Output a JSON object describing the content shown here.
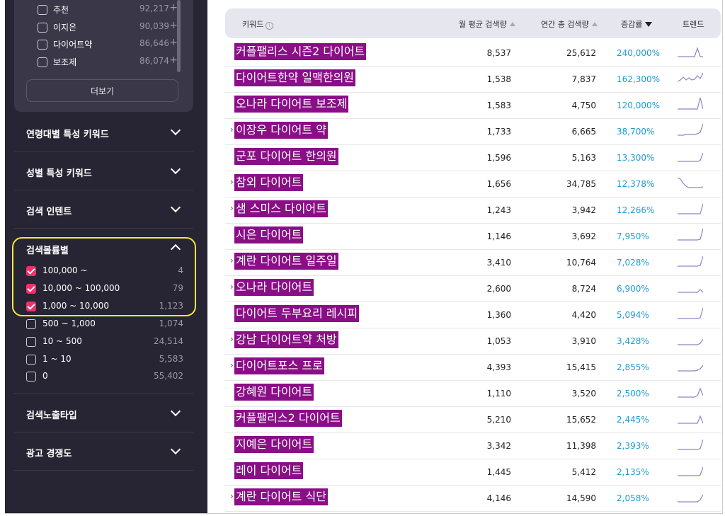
{
  "sidebar": {
    "top_filters": [
      {
        "label": "추천",
        "count": "92,217"
      },
      {
        "label": "이지은",
        "count": "90,039"
      },
      {
        "label": "다이어트약",
        "count": "86,646"
      },
      {
        "label": "보조제",
        "count": "86,074"
      }
    ],
    "plus_symbol": "+",
    "more_button": "더보기",
    "sections": {
      "age": "연령대별 특성 키워드",
      "gender": "성별 특성 키워드",
      "intent": "검색 인텐트",
      "volume": "검색볼륨별",
      "exposure": "검색노출타입",
      "competition": "광고 경쟁도"
    },
    "volume_filters": [
      {
        "label": "100,000 ~",
        "count": "4",
        "checked": true
      },
      {
        "label": "10,000 ~ 100,000",
        "count": "79",
        "checked": true
      },
      {
        "label": "1,000 ~ 10,000",
        "count": "1,123",
        "checked": true
      },
      {
        "label": "500 ~ 1,000",
        "count": "1,074",
        "checked": false
      },
      {
        "label": "10 ~ 500",
        "count": "24,514",
        "checked": false
      },
      {
        "label": "1 ~ 10",
        "count": "5,583",
        "checked": false
      },
      {
        "label": "0",
        "count": "55,402",
        "checked": false
      }
    ]
  },
  "table": {
    "headers": {
      "keyword": "키워드",
      "info_icon": "i",
      "monthly": "월 평균 검색량",
      "yearly": "연간 총 검색량",
      "growth": "증감률",
      "trend": "트렌드"
    },
    "rows": [
      {
        "kw": "커플팰리스 시즌2 다이어트",
        "caret": false,
        "monthly": "8,537",
        "yearly": "25,612",
        "growth": "240,000%",
        "trend": [
          20,
          20,
          20,
          20,
          20,
          20,
          20,
          8,
          20,
          20
        ],
        "trend_icon": "spike-icon"
      },
      {
        "kw": "다이어트한약 일맥한의원",
        "caret": false,
        "monthly": "1,538",
        "yearly": "7,837",
        "growth": "162,300%",
        "trend": [
          18,
          16,
          12,
          16,
          13,
          16,
          15,
          10,
          14,
          6
        ],
        "trend_icon": "wave-icon"
      },
      {
        "kw": "오나라 다이어트 보조제",
        "caret": false,
        "monthly": "1,583",
        "yearly": "4,750",
        "growth": "120,000%",
        "trend": [
          20,
          20,
          20,
          20,
          20,
          20,
          20,
          20,
          4,
          20
        ],
        "trend_icon": "spike-icon"
      },
      {
        "kw": "이장우 다이어트 약",
        "caret": true,
        "monthly": "1,733",
        "yearly": "6,665",
        "growth": "38,700%",
        "trend": [
          20,
          20,
          20,
          19,
          19,
          19,
          19,
          18,
          16,
          4
        ],
        "trend_icon": "rise-icon"
      },
      {
        "kw": "군포 다이어트 한의원",
        "caret": false,
        "monthly": "1,596",
        "yearly": "5,163",
        "growth": "13,300%",
        "trend": [
          20,
          20,
          20,
          20,
          20,
          20,
          20,
          20,
          19,
          8
        ],
        "trend_icon": "rise-icon"
      },
      {
        "kw": "참외 다이어트",
        "caret": true,
        "monthly": "1,656",
        "yearly": "34,785",
        "growth": "12,378%",
        "trend": [
          6,
          8,
          14,
          18,
          20,
          20,
          20,
          20,
          20,
          19
        ],
        "trend_icon": "fall-icon"
      },
      {
        "kw": "샘 스미스 다이어트",
        "caret": true,
        "monthly": "1,243",
        "yearly": "3,942",
        "growth": "12,266%",
        "trend": [
          20,
          20,
          20,
          20,
          20,
          20,
          20,
          20,
          20,
          6
        ],
        "trend_icon": "rise-icon"
      },
      {
        "kw": "시은 다이어트",
        "caret": false,
        "monthly": "1,146",
        "yearly": "3,692",
        "growth": "7,950%",
        "trend": [
          20,
          20,
          20,
          20,
          20,
          20,
          20,
          20,
          19,
          4
        ],
        "trend_icon": "rise-icon"
      },
      {
        "kw": "계란 다이어트 일주일",
        "caret": true,
        "monthly": "3,410",
        "yearly": "10,764",
        "growth": "7,028%",
        "trend": [
          20,
          20,
          20,
          20,
          20,
          20,
          20,
          20,
          19,
          6
        ],
        "trend_icon": "rise-icon"
      },
      {
        "kw": "오나라 다이어트",
        "caret": true,
        "monthly": "2,600",
        "yearly": "8,724",
        "growth": "6,900%",
        "trend": [
          20,
          20,
          20,
          20,
          20,
          20,
          20,
          20,
          16,
          20
        ],
        "trend_icon": "spike-icon"
      },
      {
        "kw": "다이어트 두부요리 레시피",
        "caret": false,
        "monthly": "1,360",
        "yearly": "4,420",
        "growth": "5,094%",
        "trend": [
          20,
          20,
          20,
          20,
          20,
          20,
          20,
          20,
          19,
          5
        ],
        "trend_icon": "rise-icon"
      },
      {
        "kw": "강남 다이어트약 처방",
        "caret": true,
        "monthly": "1,053",
        "yearly": "3,910",
        "growth": "3,428%",
        "trend": [
          20,
          20,
          20,
          20,
          20,
          20,
          20,
          20,
          18,
          12
        ],
        "trend_icon": "rise-icon"
      },
      {
        "kw": "다이어트포스 프로",
        "caret": true,
        "monthly": "4,393",
        "yearly": "15,415",
        "growth": "2,855%",
        "trend": [
          20,
          20,
          20,
          20,
          20,
          20,
          20,
          19,
          17,
          12
        ],
        "trend_icon": "rise-icon"
      },
      {
        "kw": "강혜원 다이어트",
        "caret": false,
        "monthly": "1,110",
        "yearly": "3,520",
        "growth": "2,500%",
        "trend": [
          20,
          20,
          20,
          20,
          20,
          20,
          20,
          18,
          8,
          18
        ],
        "trend_icon": "spike-icon"
      },
      {
        "kw": "커플팰리스2 다이어트",
        "caret": false,
        "monthly": "5,210",
        "yearly": "15,652",
        "growth": "2,445%",
        "trend": [
          20,
          20,
          20,
          20,
          20,
          20,
          20,
          20,
          10,
          20
        ],
        "trend_icon": "spike-icon"
      },
      {
        "kw": "지예은 다이어트",
        "caret": false,
        "monthly": "3,342",
        "yearly": "11,398",
        "growth": "2,393%",
        "trend": [
          20,
          20,
          20,
          20,
          20,
          20,
          20,
          20,
          19,
          6
        ],
        "trend_icon": "rise-icon"
      },
      {
        "kw": "레이 다이어트",
        "caret": false,
        "monthly": "1,445",
        "yearly": "5,412",
        "growth": "2,135%",
        "trend": [
          20,
          20,
          20,
          20,
          20,
          20,
          20,
          20,
          19,
          8
        ],
        "trend_icon": "rise-icon"
      },
      {
        "kw": "계란 다이어트 식단",
        "caret": true,
        "monthly": "4,146",
        "yearly": "14,590",
        "growth": "2,058%",
        "trend": [
          20,
          20,
          20,
          20,
          20,
          20,
          20,
          20,
          17,
          10
        ],
        "trend_icon": "rise-icon"
      }
    ]
  },
  "colors": {
    "sidebar_bg": "#272433",
    "checkbox_on": "#f0306a",
    "highlight_keyword": "#8a0e86",
    "growth_text": "#1f9bd6",
    "annotation_outline": "#f4e542",
    "trend_line": "#8a86c8"
  }
}
